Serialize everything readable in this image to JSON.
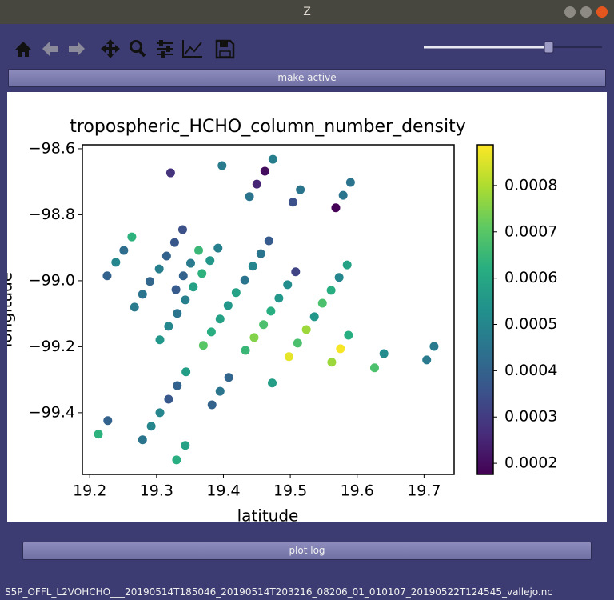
{
  "window": {
    "title": "Z"
  },
  "buttons": {
    "make_active": "make active",
    "plot_log": "plot log"
  },
  "status": "S5P_OFFL_L2VOHCHO___20190514T185046_20190514T203216_08206_01_010107_20190522T124545_vallejo.nc",
  "chart_data": {
    "type": "scatter",
    "title": "tropospheric_HCHO_column_number_density",
    "x_label": "latitude",
    "y_label": "longitude",
    "x": [
      19.321,
      19.398,
      19.474,
      19.462,
      19.45,
      19.439,
      19.515,
      19.504,
      19.59,
      19.579,
      19.568,
      19.363,
      19.351,
      19.34,
      19.329,
      19.267,
      19.279,
      19.29,
      19.304,
      19.315,
      19.327,
      19.339,
      19.226,
      19.239,
      19.251,
      19.263,
      19.305,
      19.318,
      19.331,
      19.343,
      19.355,
      19.368,
      19.38,
      19.392,
      19.37,
      19.382,
      19.395,
      19.407,
      19.419,
      19.432,
      19.444,
      19.456,
      19.468,
      19.433,
      19.446,
      19.46,
      19.471,
      19.483,
      19.496,
      19.508,
      19.498,
      19.511,
      19.524,
      19.536,
      19.548,
      19.561,
      19.573,
      19.585,
      19.562,
      19.575,
      19.587,
      19.626,
      19.64,
      19.704,
      19.715,
      19.213,
      19.227,
      19.279,
      19.292,
      19.305,
      19.318,
      19.331,
      19.344,
      19.33,
      19.343,
      19.383,
      19.395,
      19.408,
      19.473
    ],
    "y": [
      -98.673,
      -98.651,
      -98.632,
      -98.668,
      -98.707,
      -98.745,
      -98.724,
      -98.762,
      -98.702,
      -98.741,
      -98.779,
      -98.908,
      -98.947,
      -98.985,
      -99.027,
      -99.08,
      -99.041,
      -99.002,
      -98.964,
      -98.925,
      -98.884,
      -98.845,
      -98.985,
      -98.944,
      -98.908,
      -98.867,
      -99.179,
      -99.138,
      -99.099,
      -99.058,
      -99.019,
      -98.978,
      -98.939,
      -98.901,
      -99.196,
      -99.155,
      -99.116,
      -99.075,
      -99.036,
      -98.998,
      -98.956,
      -98.918,
      -98.879,
      -99.211,
      -99.172,
      -99.133,
      -99.092,
      -99.053,
      -99.012,
      -98.973,
      -99.23,
      -99.189,
      -99.148,
      -99.109,
      -99.068,
      -99.029,
      -98.99,
      -98.952,
      -99.247,
      -99.206,
      -99.165,
      -99.264,
      -99.221,
      -99.24,
      -99.199,
      -99.465,
      -99.424,
      -99.482,
      -99.441,
      -99.4,
      -99.359,
      -99.318,
      -99.276,
      -99.543,
      -99.499,
      -99.376,
      -99.335,
      -99.293,
      -99.31
    ],
    "color_values": [
      0.00028,
      0.00047,
      0.00048,
      0.0002,
      0.00025,
      0.00045,
      0.00045,
      0.00035,
      0.00045,
      0.00045,
      0.00018,
      0.00065,
      0.00047,
      0.0004,
      0.00038,
      0.00047,
      0.00045,
      0.00041,
      0.00048,
      0.0004,
      0.00037,
      0.00035,
      0.0004,
      0.0005,
      0.00043,
      0.00063,
      0.00055,
      0.0005,
      0.00045,
      0.00048,
      0.00058,
      0.00063,
      0.00055,
      0.00048,
      0.0007,
      0.00062,
      0.00058,
      0.00055,
      0.00058,
      0.00045,
      0.0005,
      0.00045,
      0.00038,
      0.00065,
      0.00075,
      0.00068,
      0.00062,
      0.00055,
      0.00052,
      0.00032,
      0.00086,
      0.00068,
      0.00078,
      0.00055,
      0.00068,
      0.00062,
      0.0005,
      0.00058,
      0.00078,
      0.00088,
      0.00062,
      0.00068,
      0.00052,
      0.00047,
      0.00047,
      0.00063,
      0.0004,
      0.00045,
      0.0005,
      0.0005,
      0.00037,
      0.0004,
      0.00057,
      0.00062,
      0.00058,
      0.0004,
      0.00045,
      0.00041,
      0.00057
    ],
    "colormap": "viridis",
    "xlim": [
      19.189,
      19.745
    ],
    "ylim": [
      -99.587,
      -98.588
    ],
    "xticks": [
      19.2,
      19.3,
      19.4,
      19.5,
      19.6,
      19.7
    ],
    "yticks": [
      {
        "value": -99.4,
        "label": "−99.4"
      },
      {
        "value": -99.2,
        "label": "−99.2"
      },
      {
        "value": -99.0,
        "label": "−99.0"
      },
      {
        "value": -98.8,
        "label": "−98.8"
      },
      {
        "value": -98.6,
        "label": "−98.6"
      }
    ],
    "colorbar": {
      "lim": [
        0.000176,
        0.000888
      ],
      "ticks": [
        0.0002,
        0.0003,
        0.0004,
        0.0005,
        0.0006,
        0.0007,
        0.0008
      ]
    }
  }
}
